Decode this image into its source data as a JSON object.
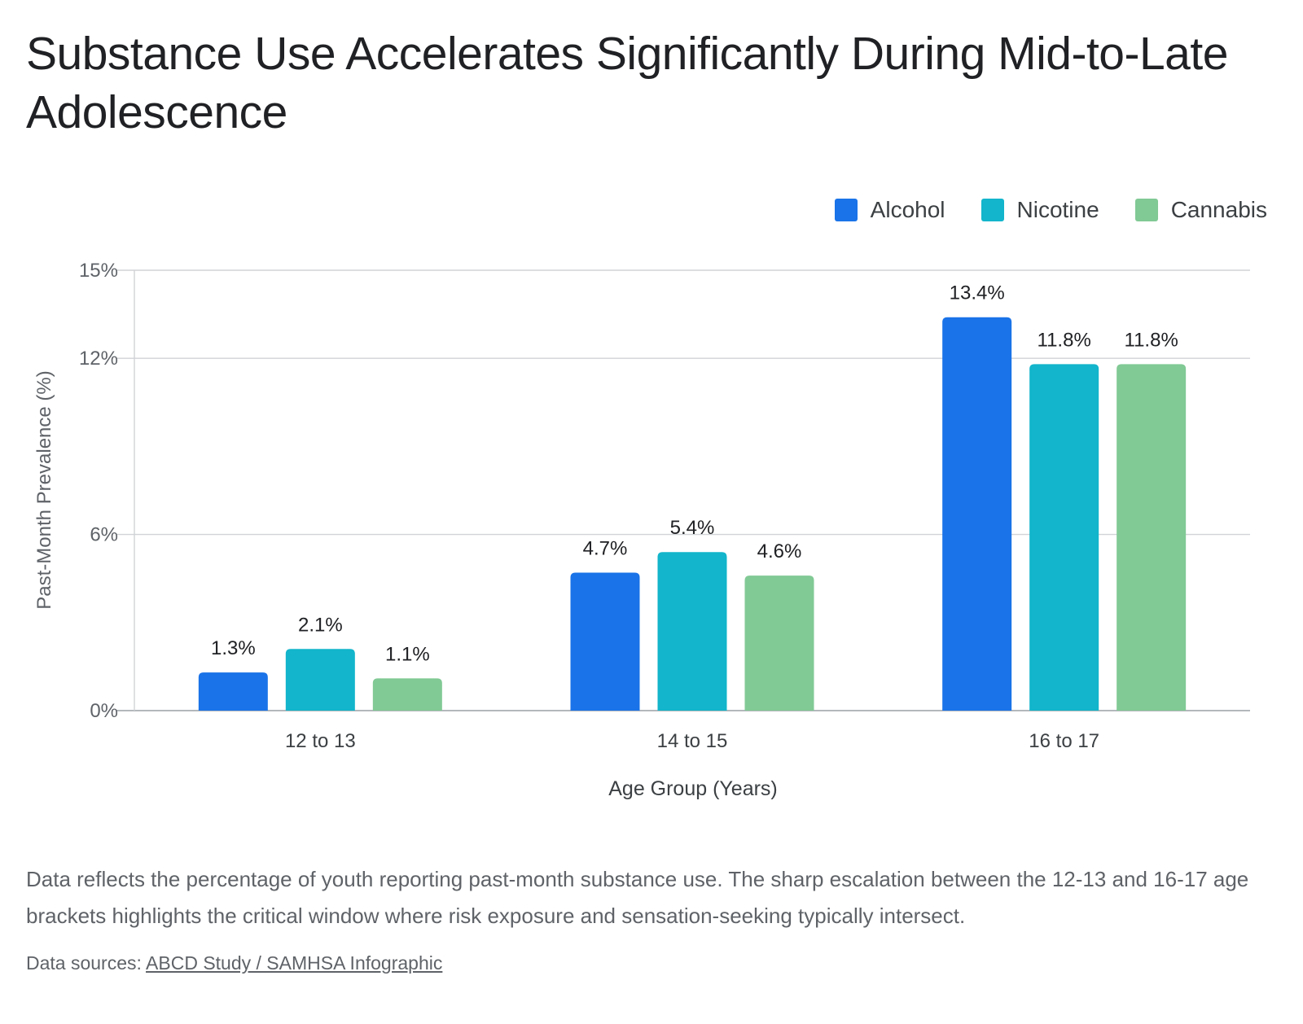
{
  "chart_data": {
    "type": "bar",
    "title": "Substance Use Accelerates Significantly During Mid-to-Late Adolescence",
    "categories": [
      "12 to 13",
      "14 to 15",
      "16 to 17"
    ],
    "series": [
      {
        "name": "Alcohol",
        "color": "#1a73e8",
        "values": [
          1.3,
          4.7,
          13.4
        ],
        "labels": [
          "1.3%",
          "4.7%",
          "13.4%"
        ]
      },
      {
        "name": "Nicotine",
        "color": "#12b5cb",
        "values": [
          2.1,
          5.4,
          11.8
        ],
        "labels": [
          "2.1%",
          "5.4%",
          "11.8%"
        ]
      },
      {
        "name": "Cannabis",
        "color": "#81c995",
        "values": [
          1.1,
          4.6,
          11.8
        ],
        "labels": [
          "1.1%",
          "4.6%",
          "11.8%"
        ]
      }
    ],
    "xlabel": "Age Group (Years)",
    "ylabel": "Past-Month Prevalence (%)",
    "ylim": [
      0,
      15
    ],
    "yticks": [
      0,
      6,
      12,
      15
    ],
    "ytick_labels": [
      "0%",
      "6%",
      "12%",
      "15%"
    ],
    "grid": true,
    "legend": "top-right"
  },
  "caption": "Data reflects the percentage of youth reporting past-month substance use. The sharp escalation between the 12-13 and 16-17 age brackets highlights the critical window where risk exposure and sensation-seeking typically intersect.",
  "source": {
    "prefix": "Data sources:",
    "link_text": "ABCD Study / SAMHSA Infographic"
  }
}
